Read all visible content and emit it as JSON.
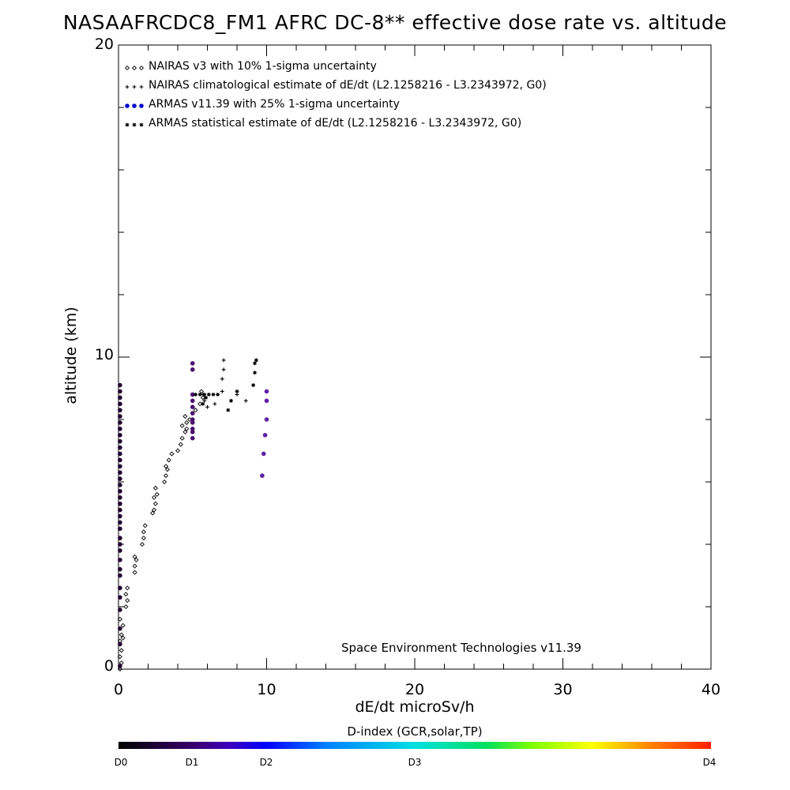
{
  "chart_data": {
    "type": "scatter",
    "title": "NASAAFRCDC8_FM1 AFRC DC-8** effective dose rate vs. altitude",
    "xlabel": "dE/dt microSv/h",
    "ylabel": "altitude (km)",
    "xlim": [
      0,
      40
    ],
    "ylim": [
      0,
      20
    ],
    "x_ticks": [
      "0",
      "10",
      "20",
      "30",
      "40"
    ],
    "y_ticks": [
      "0",
      "10",
      "20"
    ],
    "grid": false,
    "legend_placement": "top-left",
    "annotation": "Space Environment Technologies v11.39",
    "series": [
      {
        "name": "NAIRAS v3 with 10% 1-sigma uncertainty",
        "marker": "diamond",
        "color": "#000000",
        "points": [
          [
            0.1,
            0.0
          ],
          [
            0.2,
            0.2
          ],
          [
            0.1,
            0.4
          ],
          [
            0.2,
            0.6
          ],
          [
            0.1,
            0.9
          ],
          [
            0.3,
            1.0
          ],
          [
            0.2,
            1.1
          ],
          [
            0.3,
            1.4
          ],
          [
            0.1,
            1.6
          ],
          [
            0.5,
            2.0
          ],
          [
            0.6,
            2.2
          ],
          [
            0.5,
            2.4
          ],
          [
            0.6,
            2.6
          ],
          [
            1.1,
            3.1
          ],
          [
            1.1,
            3.3
          ],
          [
            1.2,
            3.5
          ],
          [
            1.1,
            3.6
          ],
          [
            1.6,
            4.0
          ],
          [
            1.7,
            4.2
          ],
          [
            1.7,
            4.4
          ],
          [
            1.8,
            4.6
          ],
          [
            2.3,
            5.0
          ],
          [
            2.4,
            5.1
          ],
          [
            2.5,
            5.3
          ],
          [
            2.4,
            5.5
          ],
          [
            2.6,
            5.6
          ],
          [
            2.5,
            5.8
          ],
          [
            3.1,
            6.0
          ],
          [
            3.2,
            6.2
          ],
          [
            3.3,
            6.4
          ],
          [
            3.2,
            6.5
          ],
          [
            3.4,
            6.7
          ],
          [
            3.6,
            6.9
          ],
          [
            4.0,
            7.0
          ],
          [
            4.2,
            7.2
          ],
          [
            4.3,
            7.4
          ],
          [
            4.5,
            7.6
          ],
          [
            4.6,
            7.7
          ],
          [
            4.3,
            7.8
          ],
          [
            4.6,
            7.9
          ],
          [
            4.8,
            8.0
          ],
          [
            4.5,
            8.1
          ],
          [
            5.2,
            8.3
          ],
          [
            5.5,
            8.5
          ],
          [
            5.7,
            8.7
          ],
          [
            5.6,
            8.9
          ]
        ]
      },
      {
        "name": "NAIRAS climatological estimate of dE/dt (L2.1258216 - L3.2343972, G0)",
        "marker": "plus",
        "color": "#000000",
        "points": [
          [
            5.7,
            8.8
          ],
          [
            5.8,
            8.6
          ],
          [
            6.0,
            8.4
          ],
          [
            6.5,
            8.5
          ],
          [
            7.0,
            8.9
          ],
          [
            7.0,
            9.3
          ],
          [
            7.1,
            9.6
          ],
          [
            7.1,
            9.9
          ],
          [
            8.0,
            8.8
          ],
          [
            8.6,
            8.6
          ]
        ]
      },
      {
        "name": "ARMAS v11.39 with 25% 1-sigma uncertainty",
        "marker": "filled-circle",
        "color": "#0000cc",
        "points": [
          [
            0.1,
            0.1
          ],
          [
            0.1,
            0.8
          ],
          [
            0.1,
            1.3
          ],
          [
            0.1,
            1.9
          ],
          [
            0.1,
            2.3
          ],
          [
            0.1,
            2.6
          ],
          [
            0.1,
            3.0
          ],
          [
            0.1,
            3.2
          ],
          [
            0.1,
            3.5
          ],
          [
            0.1,
            3.8
          ],
          [
            0.1,
            4.0
          ],
          [
            0.1,
            4.2
          ],
          [
            0.1,
            4.5
          ],
          [
            0.1,
            4.7
          ],
          [
            0.1,
            4.9
          ],
          [
            0.1,
            5.1
          ],
          [
            0.1,
            5.3
          ],
          [
            0.1,
            5.5
          ],
          [
            0.1,
            5.7
          ],
          [
            0.1,
            5.9
          ],
          [
            0.1,
            6.1
          ],
          [
            0.1,
            6.3
          ],
          [
            0.1,
            6.5
          ],
          [
            0.1,
            6.7
          ],
          [
            0.1,
            6.9
          ],
          [
            0.1,
            7.1
          ],
          [
            0.1,
            7.3
          ],
          [
            0.1,
            7.5
          ],
          [
            0.1,
            7.7
          ],
          [
            0.1,
            7.9
          ],
          [
            0.1,
            8.1
          ],
          [
            0.1,
            8.3
          ],
          [
            0.1,
            8.5
          ],
          [
            0.1,
            8.7
          ],
          [
            0.1,
            8.9
          ],
          [
            0.1,
            9.1
          ],
          [
            5.0,
            7.4
          ],
          [
            5.0,
            7.6
          ],
          [
            5.0,
            7.7
          ],
          [
            5.0,
            7.9
          ],
          [
            5.0,
            8.0
          ],
          [
            5.0,
            8.2
          ],
          [
            5.0,
            8.4
          ],
          [
            5.0,
            8.6
          ],
          [
            5.0,
            8.8
          ],
          [
            5.0,
            9.6
          ],
          [
            5.0,
            9.8
          ],
          [
            9.7,
            6.2
          ],
          [
            9.8,
            6.9
          ],
          [
            9.9,
            7.5
          ],
          [
            10.0,
            8.0
          ],
          [
            10.0,
            8.6
          ],
          [
            10.0,
            8.9
          ]
        ]
      },
      {
        "name": "ARMAS statistical estimate of dE/dt (L2.1258216 - L3.2343972, G0)",
        "marker": "asterisk",
        "color": "#000000",
        "points": [
          [
            5.2,
            8.8
          ],
          [
            5.5,
            8.8
          ],
          [
            5.8,
            8.8
          ],
          [
            6.1,
            8.8
          ],
          [
            6.4,
            8.8
          ],
          [
            6.7,
            8.8
          ],
          [
            5.7,
            8.5
          ],
          [
            5.9,
            8.7
          ],
          [
            7.6,
            8.6
          ],
          [
            7.4,
            8.3
          ],
          [
            8.0,
            8.9
          ],
          [
            9.1,
            9.1
          ],
          [
            9.2,
            9.5
          ],
          [
            9.2,
            9.8
          ],
          [
            9.3,
            9.9
          ]
        ]
      }
    ],
    "colorbar": {
      "title": "D-index (GCR,solar,TP)",
      "labels": [
        "D0",
        "D1",
        "D2",
        "D3",
        "D4"
      ],
      "positions": [
        0,
        0.125,
        0.25,
        0.5,
        1.0
      ]
    }
  }
}
